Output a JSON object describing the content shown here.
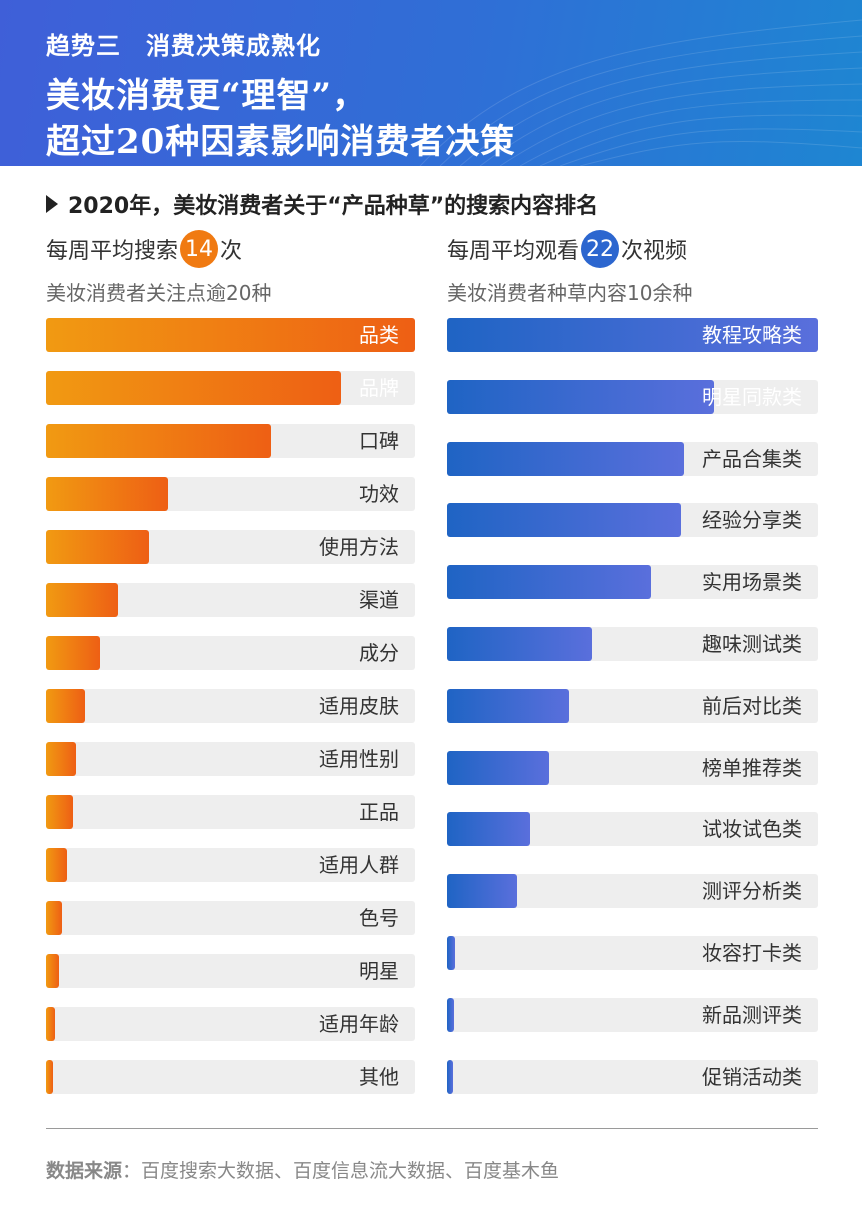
{
  "header": {
    "trend": "趋势三　消费决策成熟化",
    "headline_line1": "美妆消费更“理智”，",
    "headline_line2": "超过20种因素影响消费者决策"
  },
  "section_title": "2020年，美妆消费者关于“产品种草”的搜索内容排名",
  "left": {
    "head_prefix": "每周平均搜索",
    "head_badge": "14",
    "head_suffix": "次",
    "sub": "美妆消费者关注点逾20种"
  },
  "right": {
    "head_prefix": "每周平均观看",
    "head_badge": "22",
    "head_suffix": "次视频",
    "sub": "美妆消费者种草内容10余种"
  },
  "footer": {
    "label": "数据来源",
    "text": "：百度搜索大数据、百度信息流大数据、百度基木鱼"
  },
  "colors": {
    "orange_start": "#f19a12",
    "orange_end": "#ee5f14",
    "blue_start": "#1f64c4",
    "blue_end": "#5a6fdc",
    "track": "#eeeeee"
  },
  "chart_data": [
    {
      "type": "bar",
      "orientation": "horizontal",
      "categories": [
        "品类",
        "品牌",
        "口碑",
        "功效",
        "使用方法",
        "渠道",
        "成分",
        "适用皮肤",
        "适用性别",
        "正品",
        "适用人群",
        "色号",
        "明星",
        "适用年龄",
        "其他"
      ],
      "values": [
        100,
        80,
        61,
        33,
        28,
        19.5,
        14.5,
        10.5,
        8.2,
        7.3,
        5.6,
        4.3,
        3.5,
        2.5,
        1.8
      ],
      "xlim": [
        0,
        100
      ]
    },
    {
      "type": "bar",
      "orientation": "horizontal",
      "categories": [
        "教程攻略类",
        "明星同款类",
        "产品合集类",
        "经验分享类",
        "实用场景类",
        "趣味测试类",
        "前后对比类",
        "榜单推荐类",
        "试妆试色类",
        "测评分析类",
        "妆容打卡类",
        "新品测评类",
        "促销活动类"
      ],
      "values": [
        100,
        72,
        64,
        63,
        55,
        39,
        33,
        27.5,
        22.5,
        18.8,
        2.2,
        2.0,
        1.6
      ],
      "xlim": [
        0,
        100
      ]
    }
  ]
}
